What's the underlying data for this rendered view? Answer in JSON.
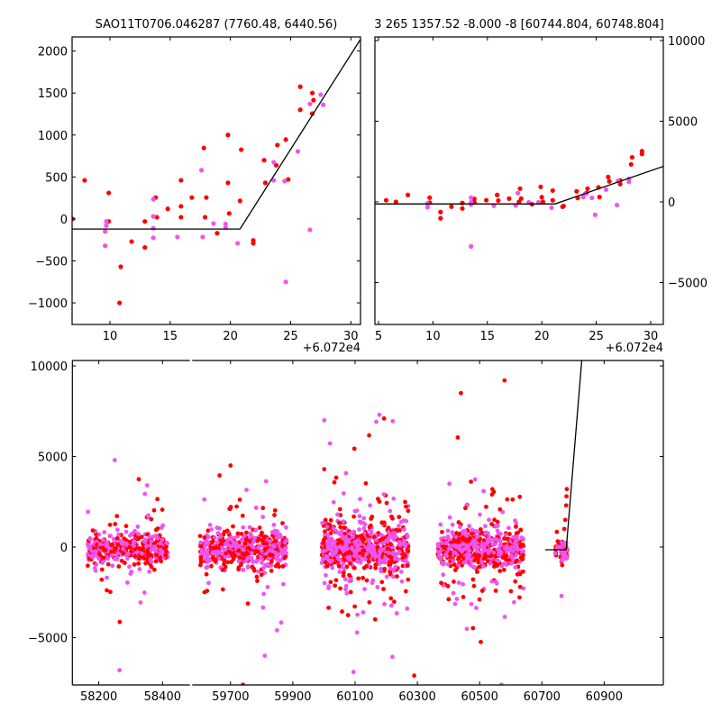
{
  "chart_data": [
    {
      "type": "scatter",
      "title": "SAO11T0706.046287 (7760.48, 6440.56)",
      "offset_label": "+6.072e4",
      "xlim": [
        6.86,
        30.8
      ],
      "ylim": [
        -1257,
        2168
      ],
      "xticks": [
        10,
        15,
        20,
        25,
        30
      ],
      "yticks": [
        -1000,
        -500,
        0,
        500,
        1000,
        1500,
        2000
      ],
      "yaxis_side": "left",
      "model_line": [
        [
          6.86,
          -120
        ],
        [
          20.8,
          -120
        ],
        [
          30.8,
          2140
        ]
      ],
      "series": [
        {
          "name": "red",
          "color": "#ff0000",
          "points": [
            [
              6.9,
              0
            ],
            [
              7.9,
              460
            ],
            [
              9.9,
              310
            ],
            [
              9.9,
              -30
            ],
            [
              10.9,
              -570
            ],
            [
              10.8,
              -1000
            ],
            [
              11.8,
              -270
            ],
            [
              12.9,
              -30
            ],
            [
              12.9,
              -340
            ],
            [
              13.8,
              255
            ],
            [
              13.9,
              20
            ],
            [
              14.8,
              120
            ],
            [
              15.9,
              460
            ],
            [
              15.9,
              150
            ],
            [
              15.9,
              20
            ],
            [
              16.8,
              255
            ],
            [
              17.8,
              845
            ],
            [
              18.0,
              255
            ],
            [
              17.9,
              20
            ],
            [
              18.9,
              -170
            ],
            [
              19.8,
              1000
            ],
            [
              19.8,
              430
            ],
            [
              19.9,
              65
            ],
            [
              20.8,
              215
            ],
            [
              20.9,
              825
            ],
            [
              21.9,
              -290
            ],
            [
              21.9,
              -255
            ],
            [
              22.8,
              700
            ],
            [
              22.9,
              430
            ],
            [
              23.8,
              640
            ],
            [
              23.9,
              880
            ],
            [
              24.6,
              945
            ],
            [
              24.8,
              470
            ],
            [
              25.8,
              1575
            ],
            [
              25.8,
              1300
            ],
            [
              26.8,
              1500
            ],
            [
              26.9,
              1415
            ],
            [
              26.8,
              1255
            ]
          ]
        },
        {
          "name": "magenta",
          "color": "#ee55ee",
          "points": [
            [
              9.7,
              -30
            ],
            [
              9.7,
              -80
            ],
            [
              9.6,
              -150
            ],
            [
              9.6,
              -320
            ],
            [
              13.6,
              235
            ],
            [
              13.6,
              30
            ],
            [
              13.6,
              -110
            ],
            [
              13.6,
              -225
            ],
            [
              15.6,
              -215
            ],
            [
              17.6,
              580
            ],
            [
              17.7,
              -215
            ],
            [
              18.6,
              -55
            ],
            [
              19.6,
              -100
            ],
            [
              19.6,
              -60
            ],
            [
              20.6,
              -290
            ],
            [
              23.6,
              675
            ],
            [
              23.6,
              460
            ],
            [
              24.5,
              450
            ],
            [
              24.6,
              -750
            ],
            [
              25.6,
              805
            ],
            [
              26.6,
              1370
            ],
            [
              26.6,
              -130
            ],
            [
              27.5,
              1480
            ],
            [
              27.7,
              1360
            ]
          ]
        }
      ]
    },
    {
      "type": "scatter",
      "title": "3 265 1357.52 -8.000 -8 [60744.804, 60748.804]",
      "offset_label": "+6.072e4",
      "xlim": [
        4.67,
        31.16
      ],
      "ylim": [
        -7600,
        10223
      ],
      "xticks": [
        5,
        10,
        15,
        20,
        25,
        30
      ],
      "yticks": [
        -5000,
        0,
        5000,
        10000
      ],
      "yaxis_side": "right",
      "model_line": [
        [
          4.67,
          -130
        ],
        [
          21.2,
          -130
        ],
        [
          31.16,
          2200
        ]
      ],
      "series": [
        {
          "name": "red",
          "color": "#ff0000",
          "points": [
            [
              5.7,
              100
            ],
            [
              6.6,
              0
            ],
            [
              7.7,
              430
            ],
            [
              9.7,
              260
            ],
            [
              9.7,
              -50
            ],
            [
              10.7,
              -630
            ],
            [
              10.7,
              -1020
            ],
            [
              11.7,
              -300
            ],
            [
              12.7,
              -410
            ],
            [
              12.7,
              -70
            ],
            [
              13.8,
              180
            ],
            [
              13.8,
              -20
            ],
            [
              14.9,
              100
            ],
            [
              15.9,
              430
            ],
            [
              16.0,
              80
            ],
            [
              17.0,
              200
            ],
            [
              18.0,
              820
            ],
            [
              17.9,
              0
            ],
            [
              18.1,
              200
            ],
            [
              19.1,
              -150
            ],
            [
              19.9,
              930
            ],
            [
              20.0,
              290
            ],
            [
              20.1,
              0
            ],
            [
              21.0,
              100
            ],
            [
              21.0,
              700
            ],
            [
              21.9,
              -300
            ],
            [
              22.0,
              -260
            ],
            [
              23.2,
              650
            ],
            [
              23.3,
              240
            ],
            [
              24.2,
              820
            ],
            [
              24.1,
              550
            ],
            [
              25.2,
              900
            ],
            [
              25.3,
              300
            ],
            [
              26.1,
              1540
            ],
            [
              26.2,
              1270
            ],
            [
              27.2,
              1330
            ],
            [
              27.2,
              1100
            ],
            [
              28.2,
              2320
            ],
            [
              28.3,
              2760
            ],
            [
              29.2,
              3140
            ],
            [
              29.2,
              2970
            ]
          ]
        },
        {
          "name": "magenta",
          "color": "#ee55ee",
          "points": [
            [
              9.5,
              -100
            ],
            [
              9.5,
              -330
            ],
            [
              13.5,
              260
            ],
            [
              13.5,
              -30
            ],
            [
              13.5,
              -170
            ],
            [
              13.5,
              -2760
            ],
            [
              15.6,
              -240
            ],
            [
              17.8,
              540
            ],
            [
              17.6,
              -230
            ],
            [
              18.8,
              -30
            ],
            [
              19.7,
              -30
            ],
            [
              20.9,
              -360
            ],
            [
              23.8,
              300
            ],
            [
              24.0,
              500
            ],
            [
              24.6,
              250
            ],
            [
              24.9,
              -800
            ],
            [
              25.9,
              760
            ],
            [
              26.9,
              -200
            ],
            [
              27.0,
              1300
            ],
            [
              28.0,
              1430
            ],
            [
              28.0,
              1240
            ]
          ]
        }
      ]
    },
    {
      "type": "scatter",
      "broken_x": true,
      "ylim": [
        -7612,
        10300
      ],
      "yticks": [
        -5000,
        0,
        5000,
        10000
      ],
      "segments": [
        {
          "xlim": [
            58117,
            58486
          ],
          "xticks": [
            58200,
            58400
          ]
        },
        {
          "xlim": [
            59577,
            61090
          ],
          "xticks": [
            59700,
            59900,
            60100,
            60300,
            60500,
            60700,
            60900
          ]
        }
      ],
      "model_line": [
        [
          60711,
          -150
        ],
        [
          60778,
          -150
        ],
        [
          60828,
          10300
        ]
      ],
      "colors": {
        "red": "#ff0000",
        "magenta": "#ee55ee"
      },
      "clusters": [
        {
          "x": [
            58165,
            58417
          ],
          "n": 420,
          "core": 450,
          "tail": 1500,
          "tail_frac": 0.14
        },
        {
          "x": [
            59602,
            59880
          ],
          "n": 520,
          "core": 500,
          "tail": 1700,
          "tail_frac": 0.16
        },
        {
          "x": [
            59993,
            60271
          ],
          "n": 720,
          "core": 550,
          "tail": 2300,
          "tail_frac": 0.2
        },
        {
          "x": [
            60366,
            60641
          ],
          "n": 620,
          "core": 500,
          "tail": 2000,
          "tail_frac": 0.18
        },
        {
          "x": [
            60742,
            60782
          ],
          "n": 60,
          "core": 300,
          "tail": 600,
          "tail_frac": 0.1
        }
      ],
      "extra_points": {
        "red": [
          [
            60780,
            3200
          ],
          [
            60779,
            2800
          ],
          [
            60778,
            2300
          ],
          [
            60775,
            1500
          ],
          [
            60772,
            1000
          ],
          [
            60763,
            -800
          ],
          [
            60765,
            -1000
          ],
          [
            60001,
            4300
          ],
          [
            60193,
            7100
          ],
          [
            60440,
            8500
          ],
          [
            60580,
            9200
          ],
          [
            60430,
            6050
          ],
          [
            59700,
            4500
          ],
          [
            59740,
            -7600
          ],
          [
            60290,
            -7100
          ]
        ],
        "magenta": [
          [
            58250,
            4800
          ],
          [
            58265,
            -6800
          ],
          [
            60001,
            7000
          ],
          [
            60178,
            7300
          ],
          [
            60763,
            -2700
          ],
          [
            60570,
            -7600
          ],
          [
            60095,
            -6900
          ],
          [
            59810,
            -6000
          ]
        ]
      }
    }
  ]
}
